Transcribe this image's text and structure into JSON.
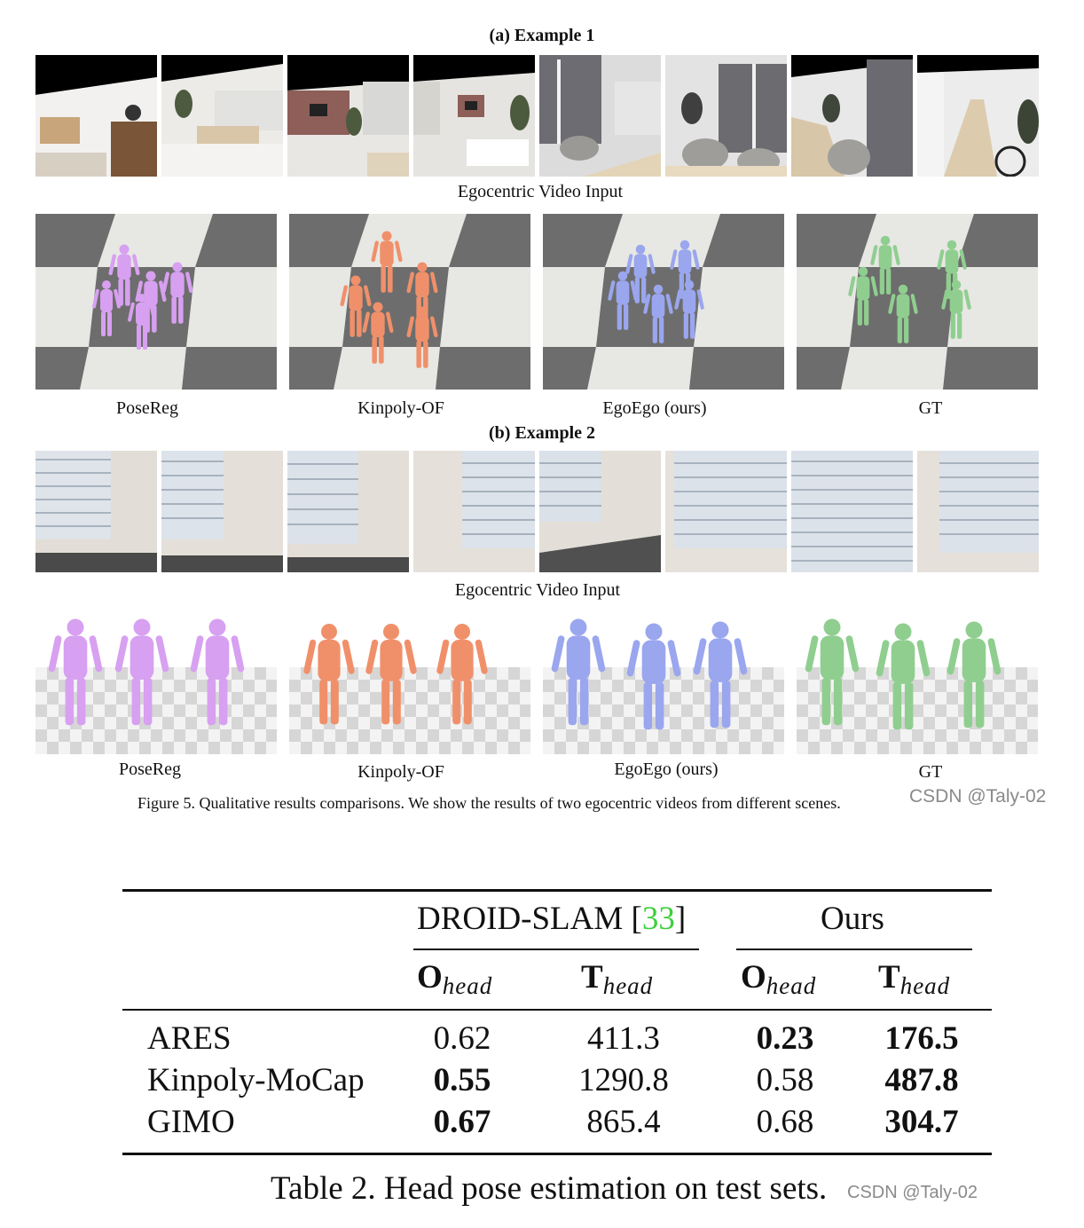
{
  "figure": {
    "example1_title": "(a) Example 1",
    "example2_title": "(b) Example 2",
    "video_caption": "Egocentric Video Input",
    "methods": [
      "PoseReg",
      "Kinpoly-OF",
      "EgoEgo (ours)",
      "GT"
    ],
    "method_colors": [
      "#d7a0f0",
      "#f0906a",
      "#9aa6ee",
      "#8fce8f"
    ],
    "caption": "Figure 5. Qualitative results comparisons. We show the results of two egocentric videos from different scenes.",
    "watermark": "CSDN @Taly-02"
  },
  "table": {
    "group1": "DROID-SLAM [",
    "group1_ref": "33",
    "group1_close": "]",
    "group2": "Ours",
    "col_o": "O",
    "col_t": "T",
    "col_sub": "head",
    "rows": [
      {
        "name": "ARES",
        "droid_o": "0.62",
        "droid_t": "411.3",
        "ours_o": "0.23",
        "ours_t": "176.5"
      },
      {
        "name": "Kinpoly-MoCap",
        "droid_o": "0.55",
        "droid_t": "1290.8",
        "ours_o": "0.58",
        "ours_t": "487.8"
      },
      {
        "name": "GIMO",
        "droid_o": "0.67",
        "droid_t": "865.4",
        "ours_o": "0.68",
        "ours_t": "304.7"
      }
    ],
    "caption": "Table 2. Head pose estimation on test sets.",
    "watermark": "CSDN @Taly-02"
  }
}
